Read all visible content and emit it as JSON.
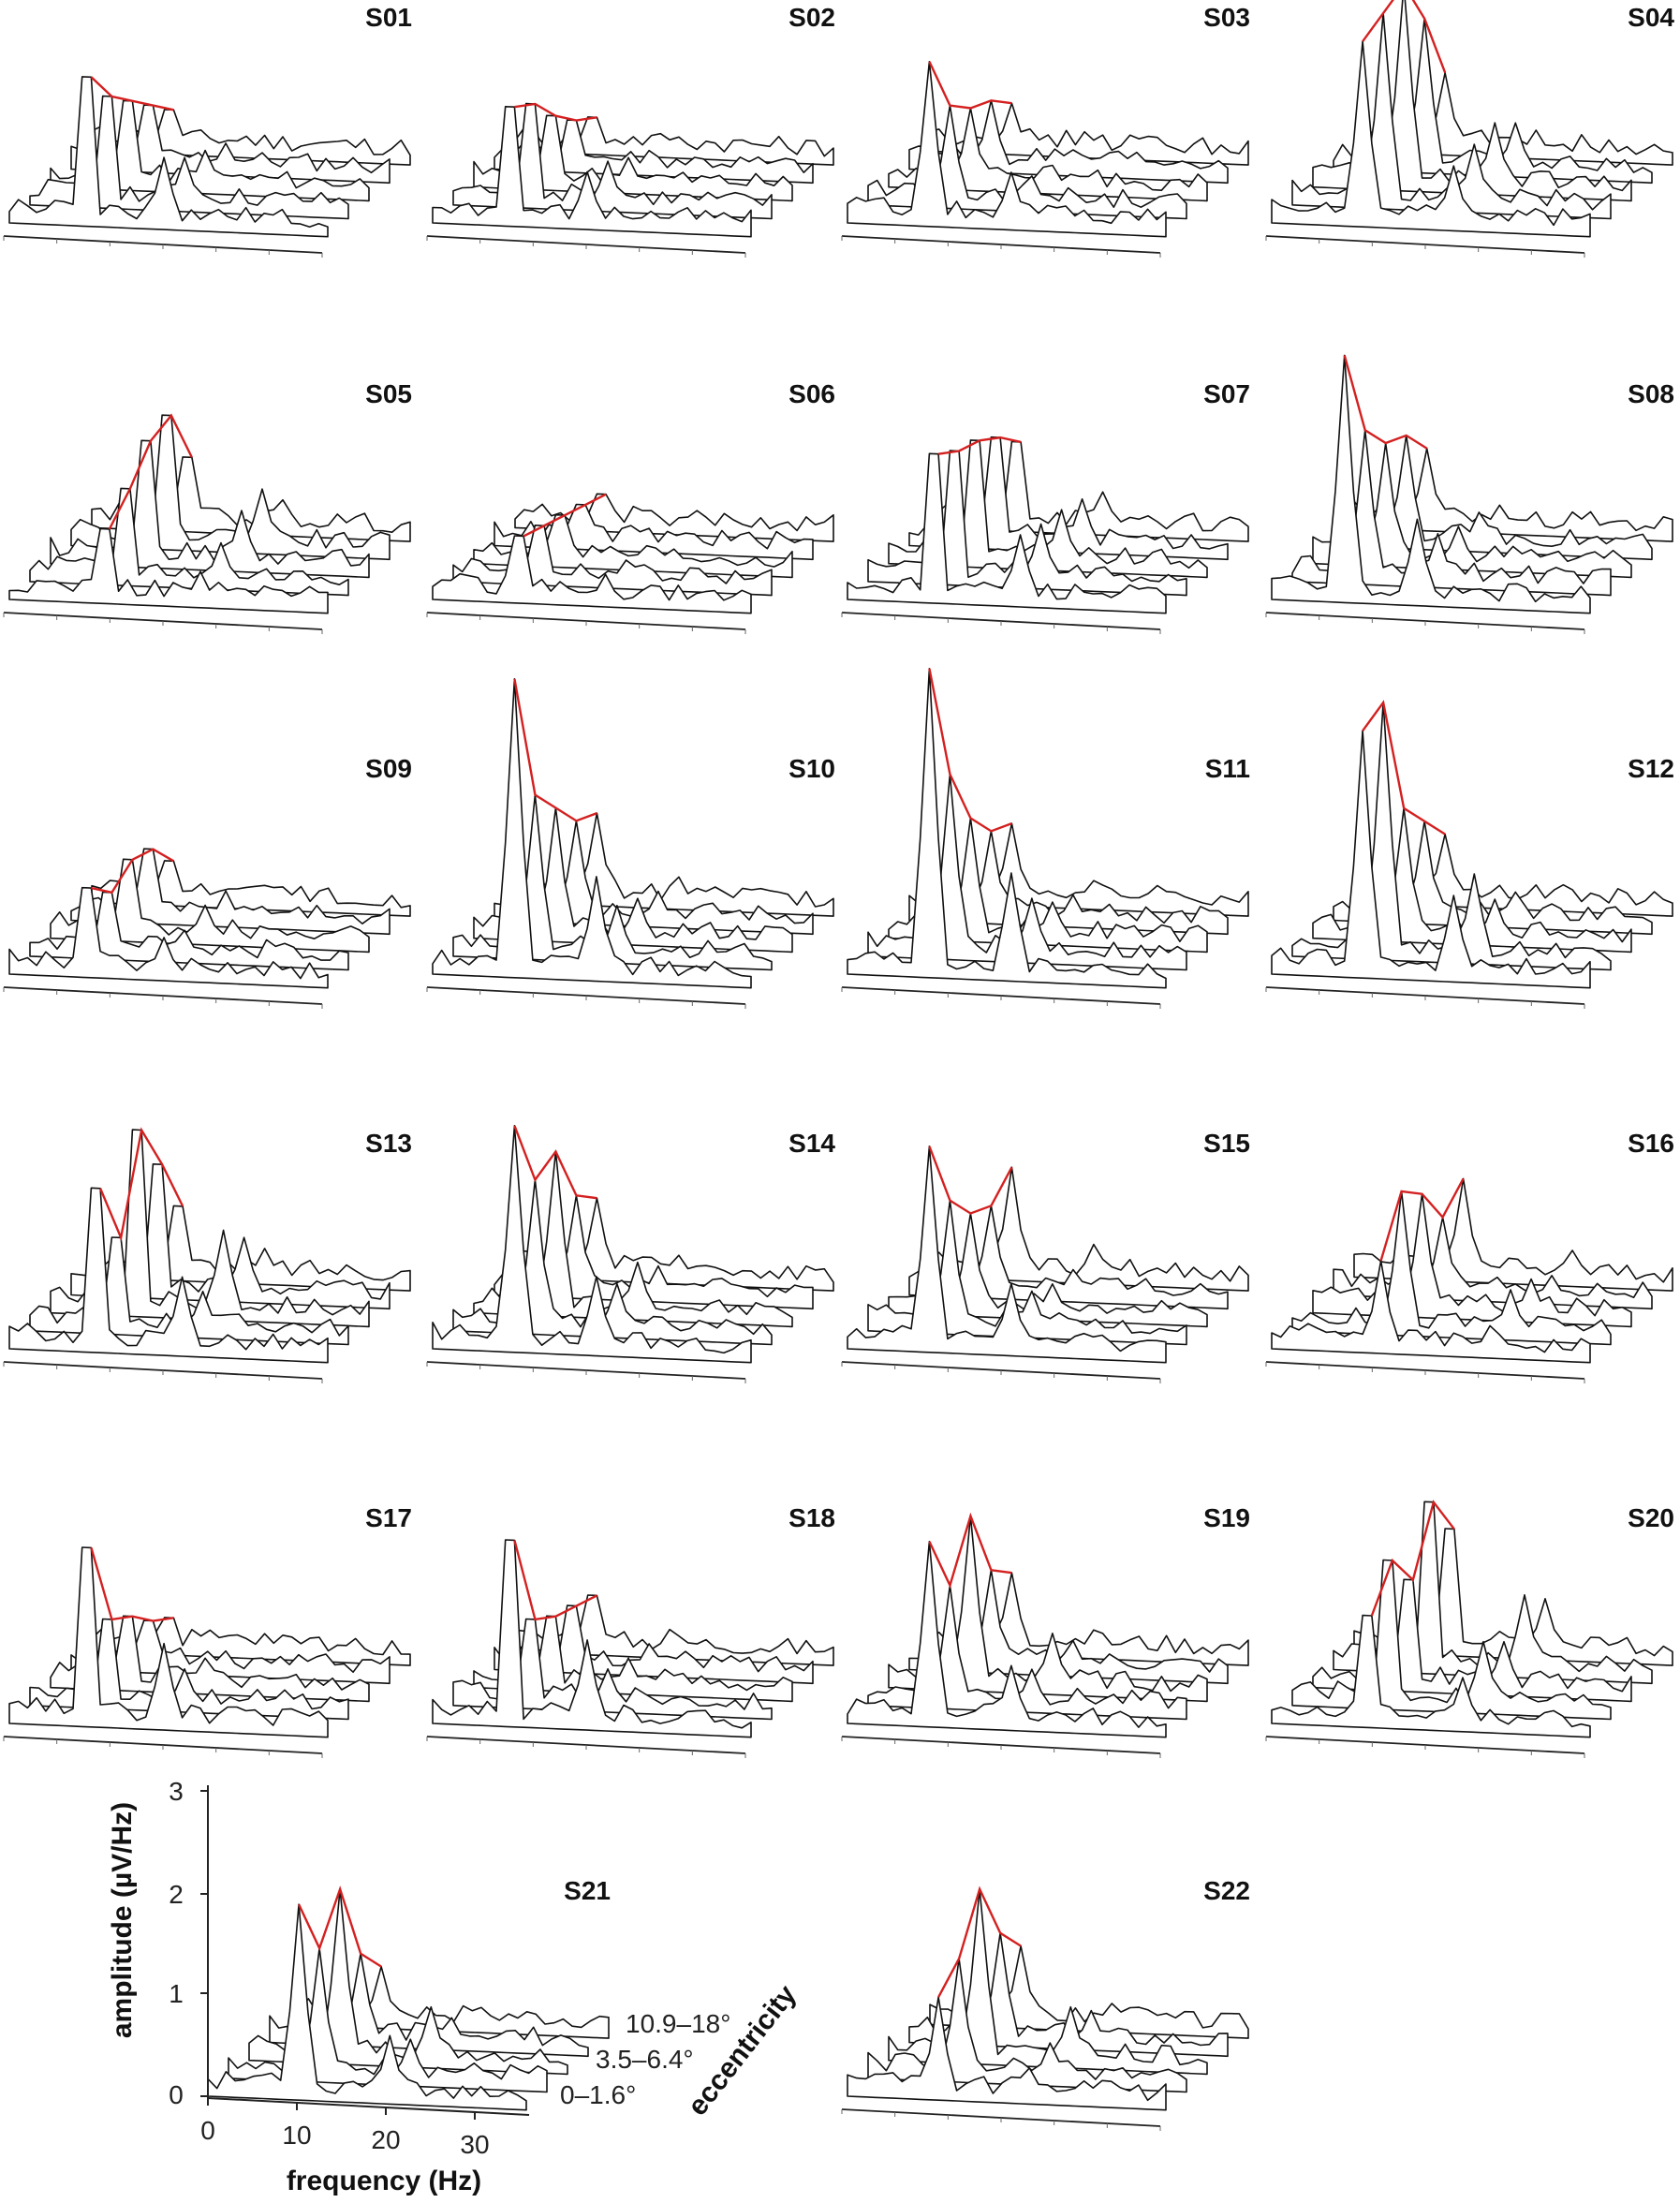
{
  "figure": {
    "panel_type": "3D waterfall amplitude spectra, one per subject; red line traces the largest peak across eccentricity rows",
    "colors": {
      "mesh": "#111111",
      "peak_trace": "#d42020",
      "surface_fill": "#ffffff"
    }
  },
  "chart_data": {
    "type": "area",
    "xlabel": "frequency (Hz)",
    "ylabel": "eccentricity",
    "zlabel": "amplitude (µV/Hz)",
    "xlim": [
      0,
      35
    ],
    "zlim": [
      0,
      3
    ],
    "x_ticks": [
      "0",
      "10",
      "20",
      "30"
    ],
    "z_ticks": [
      "0",
      "1",
      "2",
      "3"
    ],
    "eccentricity_ticks": [
      "0–1.6°",
      "3.5–6.4°",
      "10.9–18°"
    ],
    "panels": [
      {
        "name": "S01",
        "peak_hz": 8.5,
        "peak_amplitude": [
          2.0,
          1.5,
          1.2,
          0.9,
          0.6
        ]
      },
      {
        "name": "S02",
        "peak_hz": 8.5,
        "peak_amplitude": [
          1.6,
          1.4,
          1.0,
          0.7,
          0.5
        ]
      },
      {
        "name": "S03",
        "peak_hz": 9.0,
        "peak_amplitude": [
          1.6,
          1.0,
          0.8,
          0.7,
          0.5
        ]
      },
      {
        "name": "S04",
        "peak_hz": 10.0,
        "peak_amplitude": [
          1.8,
          1.9,
          2.0,
          1.5,
          0.8
        ]
      },
      {
        "name": "S05",
        "peak_hz": 10.5,
        "peak_amplitude": [
          1.0,
          1.3,
          1.7,
          1.8,
          1.0
        ]
      },
      {
        "name": "S06",
        "peak_hz": 9.5,
        "peak_amplitude": [
          0.9,
          0.8,
          0.7,
          0.6,
          0.5
        ]
      },
      {
        "name": "S07",
        "peak_hz": 9.5,
        "peak_amplitude": [
          2.0,
          1.8,
          1.7,
          1.5,
          1.2
        ]
      },
      {
        "name": "S08",
        "peak_hz": 8.0,
        "peak_amplitude": [
          2.4,
          1.5,
          1.2,
          1.1,
          0.8
        ]
      },
      {
        "name": "S09",
        "peak_hz": 8.5,
        "peak_amplitude": [
          1.2,
          0.9,
          1.1,
          1.0,
          0.6
        ]
      },
      {
        "name": "S10",
        "peak_hz": 9.0,
        "peak_amplitude": [
          2.9,
          1.6,
          1.3,
          1.0,
          0.9
        ]
      },
      {
        "name": "S11",
        "peak_hz": 9.0,
        "peak_amplitude": [
          3.0,
          1.8,
          1.2,
          0.9,
          0.8
        ]
      },
      {
        "name": "S12",
        "peak_hz": 10.0,
        "peak_amplitude": [
          2.4,
          2.5,
          1.3,
          1.0,
          0.7
        ]
      },
      {
        "name": "S13",
        "peak_hz": 9.5,
        "peak_amplitude": [
          2.2,
          1.3,
          2.5,
          1.8,
          1.0
        ]
      },
      {
        "name": "S14",
        "peak_hz": 9.0,
        "peak_amplitude": [
          2.2,
          1.5,
          1.6,
          1.0,
          0.8
        ]
      },
      {
        "name": "S15",
        "peak_hz": 9.0,
        "peak_amplitude": [
          2.0,
          1.3,
          1.0,
          0.9,
          1.1
        ]
      },
      {
        "name": "S16",
        "peak_hz": 12.0,
        "peak_amplitude": [
          0.9,
          1.4,
          1.2,
          0.8,
          1.0
        ]
      },
      {
        "name": "S17",
        "peak_hz": 8.5,
        "peak_amplitude": [
          2.4,
          1.2,
          1.0,
          0.7,
          0.5
        ]
      },
      {
        "name": "S18",
        "peak_hz": 8.5,
        "peak_amplitude": [
          2.5,
          1.2,
          1.0,
          0.9,
          0.8
        ]
      },
      {
        "name": "S19",
        "peak_hz": 9.0,
        "peak_amplitude": [
          1.8,
          1.2,
          1.7,
          1.0,
          0.8
        ]
      },
      {
        "name": "S20",
        "peak_hz": 10.5,
        "peak_amplitude": [
          1.5,
          2.0,
          1.5,
          2.3,
          1.7
        ]
      },
      {
        "name": "S21",
        "peak_hz": 10.0,
        "peak_amplitude": [
          1.9,
          1.3,
          1.7,
          0.9,
          0.6
        ]
      },
      {
        "name": "S22",
        "peak_hz": 10.0,
        "peak_amplitude": [
          1.0,
          1.2,
          1.7,
          1.1,
          0.8
        ]
      }
    ]
  }
}
